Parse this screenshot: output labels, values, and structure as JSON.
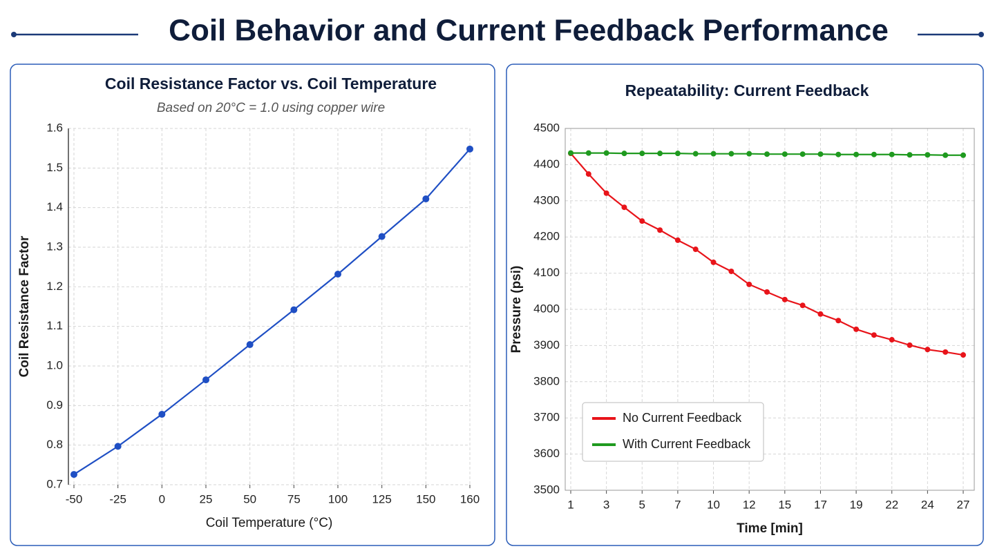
{
  "title": "Coil Behavior and Current Feedback Performance",
  "chart_data": [
    {
      "type": "line",
      "title": "Coil Resistance Factor vs. Coil Temperature",
      "subtitle": "Based on 20°C = 1.0 using copper wire",
      "x_label": "Coil Temperature (°C)",
      "y_label": "Coil Resistance Factor",
      "categories": [
        "-50",
        "-25",
        "0",
        "25",
        "50",
        "75",
        "100",
        "125",
        "150",
        "160"
      ],
      "values": [
        0.726,
        0.797,
        0.878,
        0.965,
        1.054,
        1.142,
        1.232,
        1.327,
        1.422,
        1.548
      ],
      "color": "#1f4fc4",
      "ylim": [
        0.7,
        1.6
      ],
      "yticks": [
        {
          "value": 0.7,
          "label": "0.7"
        },
        {
          "value": 0.8,
          "label": "0.8"
        },
        {
          "value": 0.9,
          "label": "0.9"
        },
        {
          "value": 1.0,
          "label": "1.0"
        },
        {
          "value": 1.1,
          "label": "1.1"
        },
        {
          "value": 1.2,
          "label": "1.2"
        },
        {
          "value": 1.3,
          "label": "1.3"
        },
        {
          "value": 1.4,
          "label": "1.4"
        },
        {
          "value": 1.5,
          "label": "1.5"
        },
        {
          "value": 1.6,
          "label": "1.6"
        }
      ],
      "grid": true
    },
    {
      "type": "line",
      "title": "Repeatability: Current Feedback",
      "x_label": "Time [min]",
      "y_label": "Pressure (psi)",
      "categories": [
        "1",
        null,
        "3",
        null,
        "5",
        null,
        "7",
        null,
        "10",
        null,
        "12",
        null,
        "15",
        null,
        "17",
        null,
        "19",
        null,
        "22",
        null,
        "24",
        null,
        "27"
      ],
      "series": [
        {
          "name": "No Current Feedback",
          "color": "#e8141a",
          "values": [
            4431,
            4374,
            4321,
            4282,
            4244,
            4219,
            4191,
            4166,
            4130,
            4105,
            4069,
            4048,
            4027,
            4011,
            3987,
            3969,
            3945,
            3929,
            3916,
            3901,
            3889,
            3882,
            3874
          ]
        },
        {
          "name": "With Current Feedback",
          "color": "#1f9a1f",
          "values": [
            4432,
            4432,
            4432,
            4431,
            4431,
            4431,
            4431,
            4430,
            4430,
            4430,
            4430,
            4429,
            4429,
            4429,
            4429,
            4428,
            4428,
            4428,
            4428,
            4427,
            4427,
            4426,
            4426
          ]
        }
      ],
      "ylim": [
        3500,
        4500
      ],
      "yticks": [
        3500,
        3600,
        3700,
        3800,
        3900,
        4000,
        4100,
        4200,
        4300,
        4400,
        4500
      ],
      "grid": true,
      "legend": "lower left"
    }
  ]
}
